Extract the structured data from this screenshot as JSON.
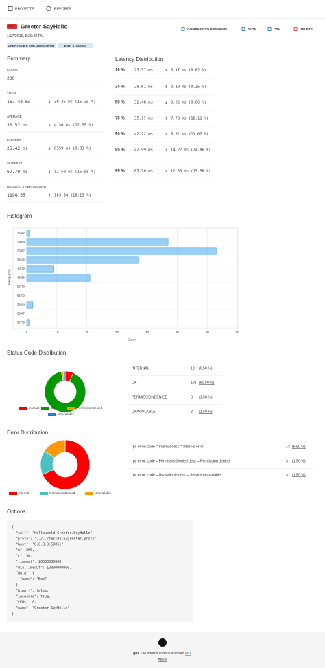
{
  "nav": {
    "projects": "PROJECTS",
    "reports": "REPORTS"
  },
  "header": {
    "status": "FAIL",
    "title": "Greeter SayHello",
    "date": "1/17/2019, 5:39:48 PM",
    "tags": [
      "CREATED BY: JOE DEVELOPER",
      "ENV: STAGING"
    ],
    "actions": [
      "COMPARE TO PREVIOUS",
      "JSON",
      "CSV",
      "DELETE"
    ]
  },
  "summary": {
    "title": "Summary",
    "rows": [
      {
        "label": "COUNT",
        "value": "200"
      },
      {
        "label": "TOTAL",
        "value": "167.43 ms",
        "change": {
          "arrow": "↓",
          "text": "30.36 ms (15.35 %)",
          "color": "#2f9e44"
        }
      },
      {
        "label": "AVERAGE",
        "value": "30.52 ms",
        "change": {
          "arrow": "↓",
          "text": "4.30 ms (12.35 %)",
          "color": "#2f9e44"
        }
      },
      {
        "label": "FASTEST",
        "value": "25.42 ms",
        "change": {
          "arrow": "↓",
          "text": "6559 ns (0.03 %)",
          "color": "#2f9e44"
        }
      },
      {
        "label": "SLOWEST",
        "value": "67.70 ms",
        "change": {
          "arrow": "↓",
          "text": "12.50 ms (15.58 %)",
          "color": "#2f9e44"
        }
      },
      {
        "label": "REQUESTS PER SECOND",
        "value": "1194.55",
        "change": {
          "arrow": "↑",
          "text": "183.34 (18.13 %)",
          "color": "#2f9e44"
        }
      }
    ]
  },
  "latency": {
    "title": "Latency Distribution",
    "rows": [
      {
        "percentile": "10 %",
        "value": "27.51 ms",
        "change": {
          "arrow": "↑",
          "text": "0.17 ms (0.62 %)",
          "color": "#e03131"
        }
      },
      {
        "percentile": "25 %",
        "value": "29.61 ms",
        "change": {
          "arrow": "↑",
          "text": "0.10 ms (0.35 %)",
          "color": "#e03131"
        }
      },
      {
        "percentile": "50 %",
        "value": "32.48 ms",
        "change": {
          "arrow": "↓",
          "text": "0.02 ms (0.06 %)",
          "color": "#2f9e44"
        }
      },
      {
        "percentile": "75 %",
        "value": "35.17 ms",
        "change": {
          "arrow": "↑",
          "text": "7.78 ms (18.11 %)",
          "color": "#e03131"
        }
      },
      {
        "percentile": "90 %",
        "value": "42.72 ms",
        "change": {
          "arrow": "↓",
          "text": "5.32 ms (11.07 %)",
          "color": "#2f9e44"
        }
      },
      {
        "percentile": "95 %",
        "value": "42.99 ms",
        "change": {
          "arrow": "↓",
          "text": "14.22 ms (24.86 %)",
          "color": "#2f9e44"
        }
      },
      {
        "percentile": "99 %",
        "value": "67.70 ms",
        "change": {
          "arrow": "↓",
          "text": "12.50 ms (15.58 %)",
          "color": "#2f9e44"
        }
      }
    ]
  },
  "chart_data": [
    {
      "type": "bar",
      "orientation": "horizontal",
      "title": "Histogram",
      "x_label": "Count",
      "y_label": "Latency (ms)",
      "categories": [
        "25.42",
        "29.64",
        "33.87",
        "38.10",
        "42.33",
        "46.56",
        "50.79",
        "55.02",
        "59.24",
        "63.47",
        "67.70"
      ],
      "values": [
        1,
        47,
        63,
        37,
        9,
        21,
        0,
        0,
        2,
        0,
        1
      ],
      "color": "#36a2eb",
      "xlim": [
        0,
        70
      ],
      "xticks": [
        0,
        10,
        20,
        30,
        40,
        50,
        60,
        70
      ],
      "grid": true
    },
    {
      "type": "doughnut",
      "title": "Status Code Distribution",
      "categories": [
        "Internal",
        "OK",
        "PermissionDenied",
        "Unavailable"
      ],
      "values": [
        13,
        181,
        3,
        3
      ],
      "colors": [
        "#ff0000",
        "#009900",
        "#ff9900",
        "#1a7fe0"
      ],
      "legend": "bottom"
    },
    {
      "type": "doughnut",
      "title": "Error Distribution",
      "categories": [
        "Internal",
        "PermissionDenied",
        "Unavailable"
      ],
      "values": [
        13,
        3,
        3
      ],
      "colors": [
        "#ff0000",
        "#4bc0c0",
        "#ff9900"
      ],
      "legend": "bottom"
    }
  ],
  "status_table": {
    "labels": [
      "INTERNAL",
      "OK",
      "PERMISSIONDENIED",
      "UNAVAILABLE"
    ],
    "percents": [
      "(6.50 %)",
      "(90.50 %)",
      "(1.50 %)",
      "(1.50 %)"
    ]
  },
  "error_table": {
    "labels": [
      "rpc error: code = Internal desc = Internal error.",
      "rpc error: code = PermissionDenied desc = Permission denied.",
      "rpc error: code = Unavailable desc = Service unavailable."
    ],
    "percents": [
      "(6.50 %)",
      "(1.50 %)",
      "(1.50 %)"
    ]
  },
  "options": {
    "title": "Options",
    "lines": [
      "{",
      "  \"call\": \"helloworld.Greeter.SayHello\",",
      "  \"proto\": \"../../testdata/greeter.proto\",",
      "  \"host\": \"0.0.0.0:50051\",",
      "  \"n\": 200,",
      "  \"c\": 50,",
      "  \"timeout\": 20000000000,",
      "  \"dialTimeout\": 10000000000,",
      "  \"data\": {",
      "    \"name\": \"Bob\"",
      "  },",
      "  \"binary\": false,",
      "  \"insecure\": true,",
      "  \"CPUs\": 8,",
      "  \"name\": \"Greeter SayHello\"",
      "}"
    ]
  },
  "footer": {
    "brand": "ghz",
    "text": " The source code is licensed ",
    "license": "MIT",
    "end": ".",
    "about": "About"
  }
}
